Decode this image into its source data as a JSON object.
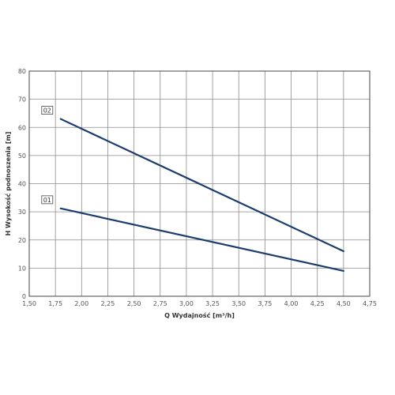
{
  "chart_data": {
    "type": "line",
    "xlabel": "Q Wydajność [m³/h]",
    "ylabel": "H Wysokość podnoszenia [m]",
    "xlim": [
      1.5,
      4.75
    ],
    "ylim": [
      0,
      80
    ],
    "x_ticks": [
      "1,50",
      "1,75",
      "2,00",
      "2,25",
      "2,50",
      "2,75",
      "3,00",
      "3,25",
      "3,50",
      "3,75",
      "4,00",
      "4,25",
      "4,50",
      "4,75"
    ],
    "y_ticks": [
      "0",
      "10",
      "20",
      "30",
      "40",
      "50",
      "60",
      "70",
      "80"
    ],
    "grid": true,
    "line_color": "#1b3d6e",
    "series": [
      {
        "name": "01",
        "x": [
          1.8,
          4.5
        ],
        "y": [
          31.2,
          9.0
        ]
      },
      {
        "name": "02",
        "x": [
          1.8,
          4.5
        ],
        "y": [
          63.0,
          16.0
        ]
      }
    ]
  }
}
